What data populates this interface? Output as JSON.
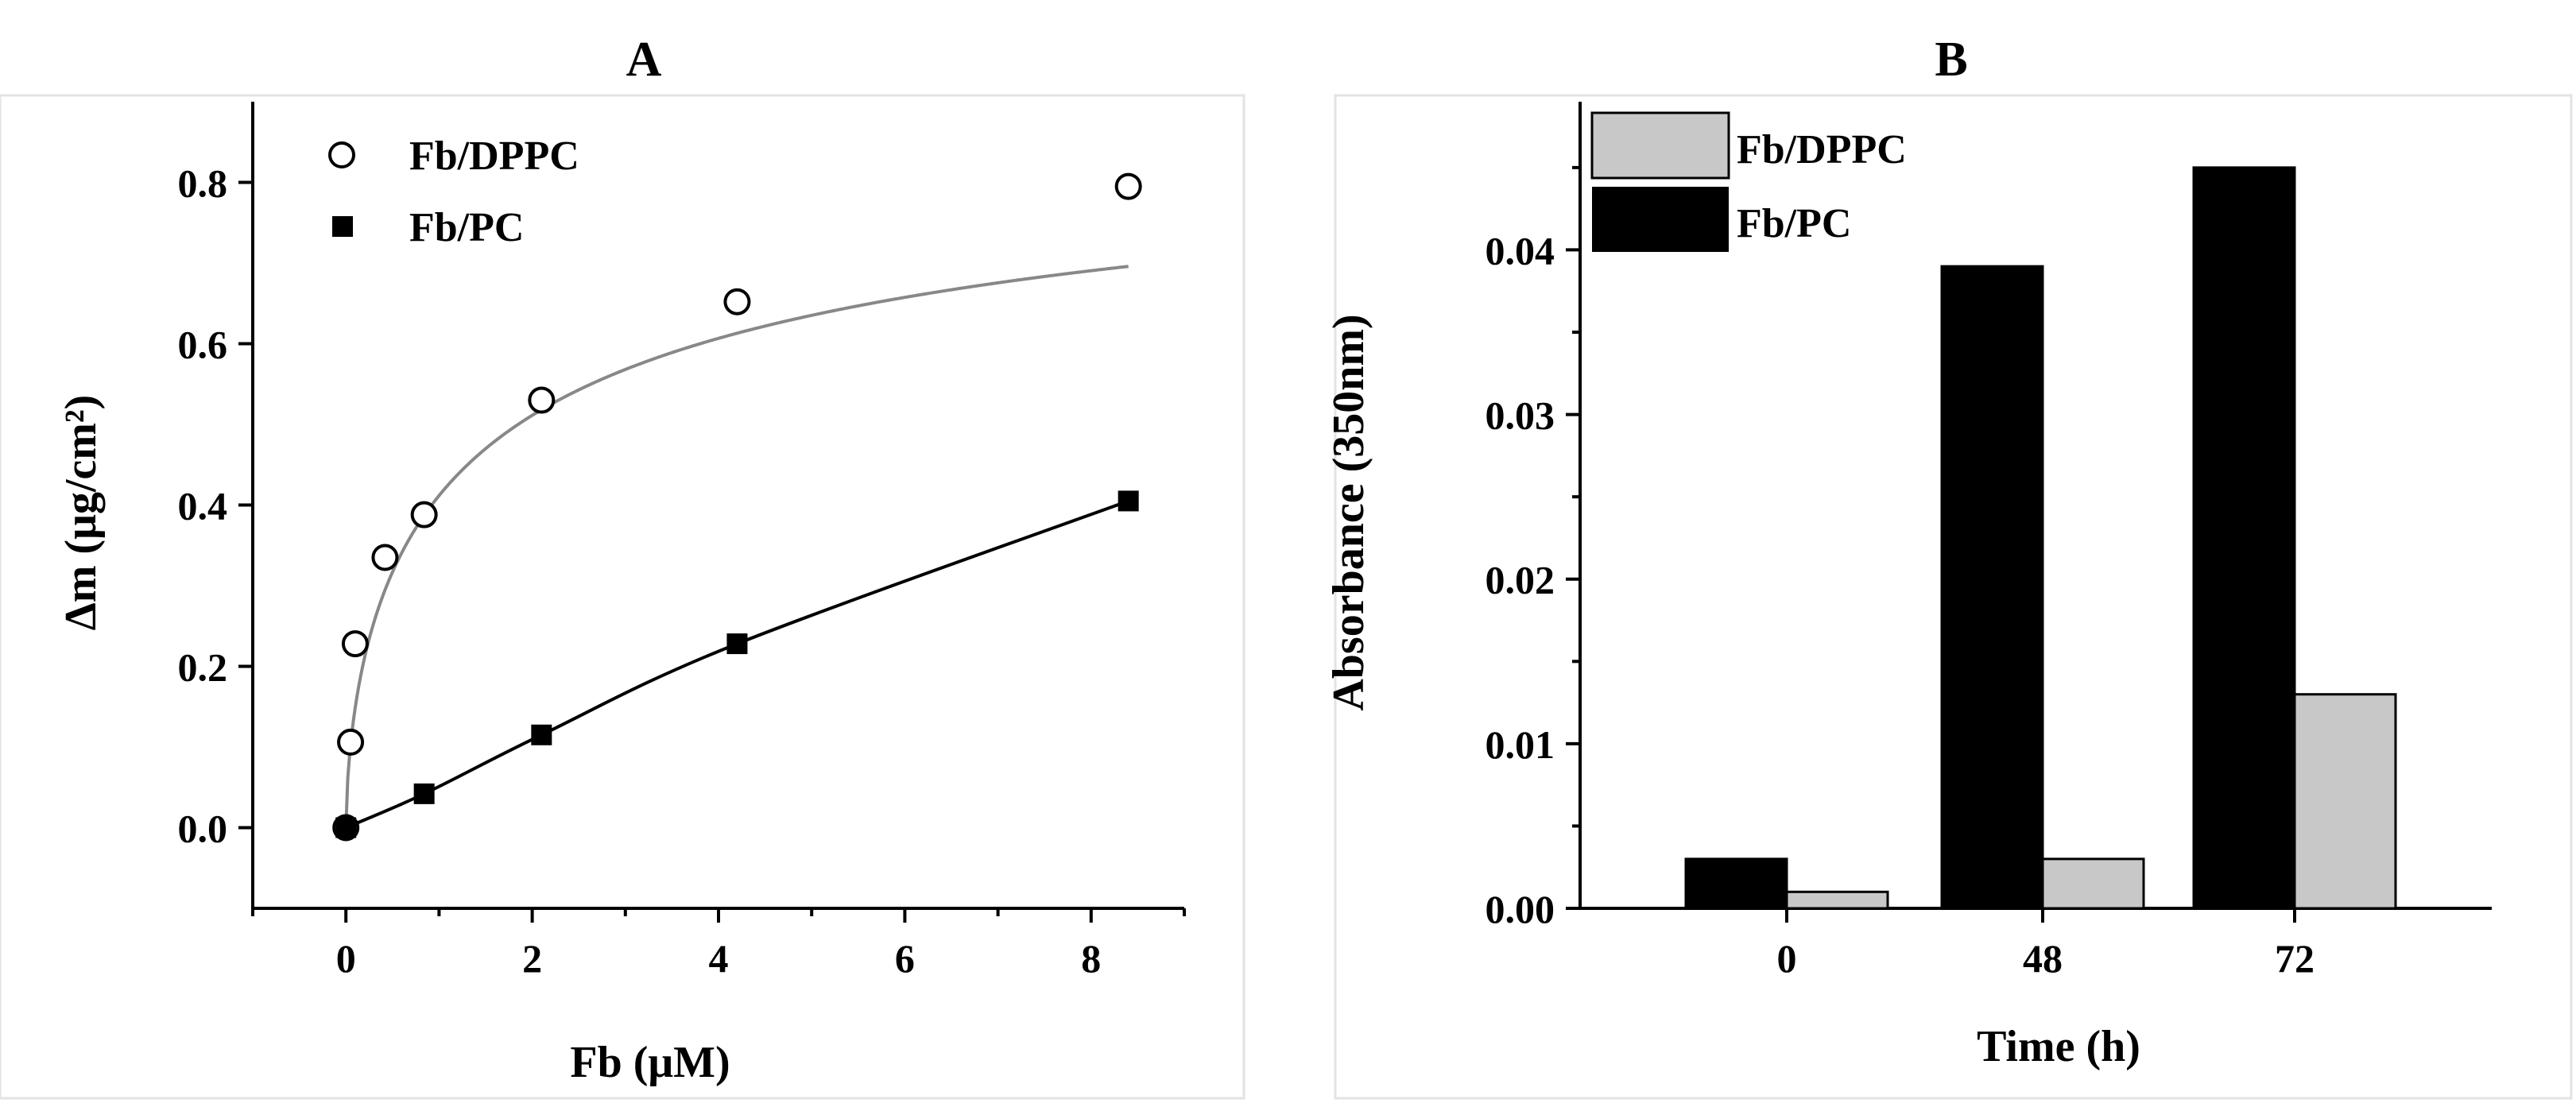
{
  "chart_data": [
    {
      "panel": "A",
      "type": "scatter",
      "title": "A",
      "xlabel": "Fb (μM)",
      "ylabel": "Δm (μg/cm²)",
      "xlim": [
        -1,
        9
      ],
      "ylim": [
        -0.1,
        0.9
      ],
      "xticks": [
        0,
        2,
        4,
        6,
        8
      ],
      "yticks": [
        0.0,
        0.2,
        0.4,
        0.6,
        0.8
      ],
      "xtick_labels": [
        "0",
        "2",
        "4",
        "6",
        "8"
      ],
      "ytick_labels": [
        "0.0",
        "0.2",
        "0.4",
        "0.6",
        "0.8"
      ],
      "legend_position": "top-left",
      "series": [
        {
          "name": "Fb/DPPC",
          "marker": "open-circle",
          "line_color": "#888888",
          "x": [
            0,
            0.05,
            0.1,
            0.42,
            0.84,
            2.1,
            4.2,
            8.4
          ],
          "y": [
            0.0,
            0.106,
            0.228,
            0.335,
            0.388,
            0.53,
            0.652,
            0.795
          ]
        },
        {
          "name": "Fb/PC",
          "marker": "filled-square",
          "line_color": "#000000",
          "x": [
            0,
            0.84,
            2.1,
            4.2,
            8.4
          ],
          "y": [
            0.0,
            0.042,
            0.115,
            0.228,
            0.405
          ]
        }
      ]
    },
    {
      "panel": "B",
      "type": "bar",
      "title": "B",
      "xlabel": "Time (h)",
      "ylabel": "Absorbance (350nm)",
      "categories": [
        "0",
        "48",
        "72"
      ],
      "ylim": [
        0,
        0.049
      ],
      "yticks": [
        0.0,
        0.01,
        0.02,
        0.03,
        0.04
      ],
      "ytick_labels": [
        "0.00",
        "0.01",
        "0.02",
        "0.03",
        "0.04"
      ],
      "legend_position": "top-left",
      "series": [
        {
          "name": "Fb/PC",
          "color": "#000000",
          "values": [
            0.003,
            0.039,
            0.045
          ]
        },
        {
          "name": "Fb/DPPC",
          "color": "#c8c8c8",
          "values": [
            0.001,
            0.003,
            0.013
          ]
        }
      ],
      "legend_order": [
        "Fb/DPPC",
        "Fb/PC"
      ]
    }
  ]
}
